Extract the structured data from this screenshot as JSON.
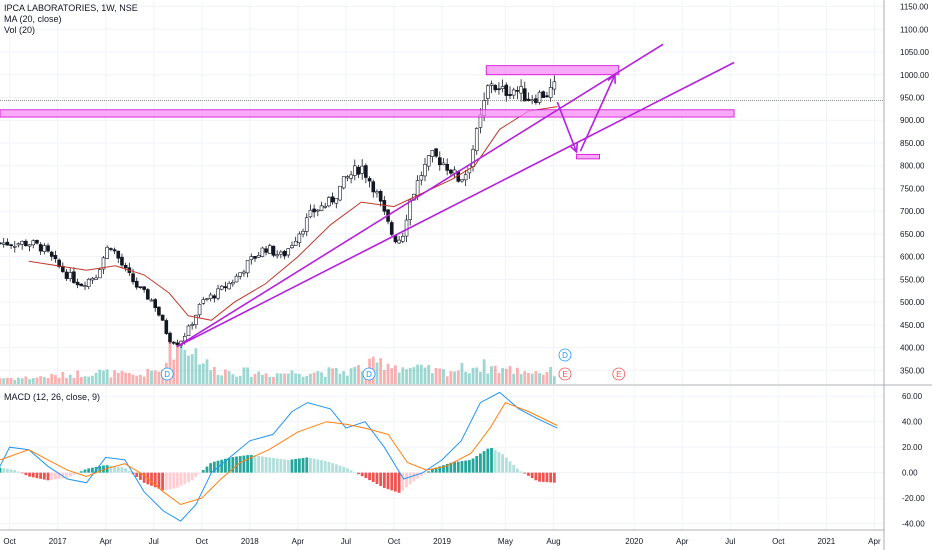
{
  "header": {
    "symbol_line": "IPCA LABORATORIES, 1W, NSE",
    "ma_line": "MA (20, close)",
    "vol_line": "Vol (20)",
    "macd_line": "MACD (12, 26, close, 9)"
  },
  "colors": {
    "up": "#26a69a",
    "down": "#ef5350",
    "ma": "#c0392b",
    "annotation": "#b620e0",
    "zone_fill": "#f58ef5",
    "zone_stroke": "#d400d4",
    "macd_line": "#2196f3",
    "signal_line": "#ff7f0e"
  },
  "chart_data": [
    {
      "type": "candlestick",
      "title": "IPCA LABORATORIES, 1W, NSE",
      "x_ticks": [
        "Oct",
        "2017",
        "Apr",
        "Jul",
        "Oct",
        "2018",
        "Apr",
        "Jul",
        "Oct",
        "2019",
        "May",
        "Aug",
        "2020",
        "Apr",
        "Jul",
        "Oct",
        "2021",
        "Apr"
      ],
      "y_ticks": [
        "350.00",
        "400.00",
        "450.00",
        "500.00",
        "550.00",
        "600.00",
        "650.00",
        "700.00",
        "750.00",
        "800.00",
        "850.00",
        "900.00",
        "950.00",
        "1000.00",
        "1050.00",
        "1100.00",
        "1150.00"
      ],
      "ylim": [
        320,
        1160
      ],
      "price_path": [
        [
          2016.85,
          630
        ],
        [
          2016.92,
          620
        ],
        [
          2017.0,
          580
        ],
        [
          2017.05,
          560
        ],
        [
          2017.12,
          540
        ],
        [
          2017.2,
          560
        ],
        [
          2017.27,
          630
        ],
        [
          2017.35,
          570
        ],
        [
          2017.42,
          530
        ],
        [
          2017.5,
          500
        ],
        [
          2017.54,
          460
        ],
        [
          2017.58,
          420
        ],
        [
          2017.63,
          410
        ],
        [
          2017.68,
          440
        ],
        [
          2017.75,
          500
        ],
        [
          2017.83,
          520
        ],
        [
          2017.92,
          550
        ],
        [
          2018.0,
          590
        ],
        [
          2018.08,
          620
        ],
        [
          2018.17,
          600
        ],
        [
          2018.25,
          650
        ],
        [
          2018.33,
          700
        ],
        [
          2018.42,
          720
        ],
        [
          2018.5,
          770
        ],
        [
          2018.58,
          800
        ],
        [
          2018.65,
          750
        ],
        [
          2018.71,
          680
        ],
        [
          2018.75,
          640
        ],
        [
          2018.79,
          640
        ],
        [
          2018.83,
          720
        ],
        [
          2018.9,
          790
        ],
        [
          2018.95,
          820
        ],
        [
          2019.0,
          810
        ],
        [
          2019.05,
          790
        ],
        [
          2019.08,
          770
        ],
        [
          2019.12,
          780
        ],
        [
          2019.17,
          850
        ],
        [
          2019.21,
          920
        ],
        [
          2019.25,
          990
        ],
        [
          2019.3,
          960
        ],
        [
          2019.37,
          970
        ],
        [
          2019.45,
          950
        ],
        [
          2019.55,
          960
        ],
        [
          2019.6,
          975
        ]
      ],
      "moving_average": [
        [
          2016.85,
          590
        ],
        [
          2017.0,
          580
        ],
        [
          2017.15,
          570
        ],
        [
          2017.3,
          580
        ],
        [
          2017.45,
          560
        ],
        [
          2017.58,
          520
        ],
        [
          2017.68,
          470
        ],
        [
          2017.8,
          460
        ],
        [
          2017.92,
          500
        ],
        [
          2018.08,
          540
        ],
        [
          2018.25,
          600
        ],
        [
          2018.42,
          670
        ],
        [
          2018.58,
          720
        ],
        [
          2018.75,
          710
        ],
        [
          2018.9,
          740
        ],
        [
          2019.05,
          770
        ],
        [
          2019.17,
          800
        ],
        [
          2019.3,
          880
        ],
        [
          2019.45,
          920
        ],
        [
          2019.6,
          930
        ]
      ],
      "last_price": 943,
      "annotations": {
        "resistance_zone": [
          2019.23,
          2019.92,
          1000,
          1020
        ],
        "support_zone": [
          2016.7,
          2020.52,
          907,
          923
        ],
        "target_zone": [
          2019.7,
          2019.82,
          815,
          825
        ],
        "trendline_1": [
          [
            2017.62,
            402
          ],
          [
            2020.15,
            1067
          ]
        ],
        "trendline_2": [
          [
            2017.62,
            402
          ],
          [
            2020.52,
            1027
          ]
        ],
        "arrow_down": [
          [
            2019.6,
            940
          ],
          [
            2019.7,
            830
          ]
        ],
        "arrow_up": [
          [
            2019.72,
            832
          ],
          [
            2019.9,
            1000
          ]
        ]
      },
      "event_markers": [
        {
          "label": "D",
          "x": 2017.57
        },
        {
          "label": "D",
          "x": 2018.62
        },
        {
          "label": "D",
          "x": 2019.64
        },
        {
          "label": "E",
          "x": 2019.64
        },
        {
          "label": "E",
          "x": 2019.92
        }
      ]
    },
    {
      "type": "bar",
      "name": "Vol (20)",
      "volume_profile": [
        [
          2016.85,
          0.15
        ],
        [
          2017.0,
          0.2
        ],
        [
          2017.2,
          0.3
        ],
        [
          2017.4,
          0.2
        ],
        [
          2017.55,
          0.35
        ],
        [
          2017.57,
          1.0
        ],
        [
          2017.7,
          0.9
        ],
        [
          2017.8,
          0.35
        ],
        [
          2017.95,
          0.3
        ],
        [
          2018.1,
          0.25
        ],
        [
          2018.3,
          0.3
        ],
        [
          2018.5,
          0.3
        ],
        [
          2018.7,
          0.55
        ],
        [
          2018.8,
          0.4
        ],
        [
          2019.0,
          0.3
        ],
        [
          2019.2,
          0.45
        ],
        [
          2019.35,
          0.35
        ],
        [
          2019.5,
          0.3
        ],
        [
          2019.6,
          0.3
        ]
      ]
    },
    {
      "type": "line",
      "title": "MACD (12, 26, close, 9)",
      "y_ticks": [
        "-40.00",
        "-20.00",
        "0.00",
        "20.00",
        "40.00",
        "60.00"
      ],
      "ylim": [
        -45,
        68
      ],
      "macd": [
        [
          2016.7,
          5
        ],
        [
          2016.75,
          20
        ],
        [
          2016.85,
          18
        ],
        [
          2016.95,
          5
        ],
        [
          2017.05,
          -5
        ],
        [
          2017.15,
          -8
        ],
        [
          2017.25,
          12
        ],
        [
          2017.35,
          10
        ],
        [
          2017.45,
          -15
        ],
        [
          2017.55,
          -30
        ],
        [
          2017.64,
          -38
        ],
        [
          2017.72,
          -25
        ],
        [
          2017.8,
          0
        ],
        [
          2017.92,
          15
        ],
        [
          2018.0,
          25
        ],
        [
          2018.12,
          30
        ],
        [
          2018.22,
          48
        ],
        [
          2018.3,
          55
        ],
        [
          2018.42,
          50
        ],
        [
          2018.5,
          35
        ],
        [
          2018.6,
          40
        ],
        [
          2018.7,
          20
        ],
        [
          2018.8,
          -5
        ],
        [
          2018.9,
          0
        ],
        [
          2019.0,
          10
        ],
        [
          2019.1,
          25
        ],
        [
          2019.2,
          55
        ],
        [
          2019.3,
          63
        ],
        [
          2019.4,
          50
        ],
        [
          2019.5,
          42
        ],
        [
          2019.6,
          35
        ]
      ],
      "signal": [
        [
          2016.7,
          10
        ],
        [
          2016.85,
          18
        ],
        [
          2016.95,
          10
        ],
        [
          2017.05,
          2
        ],
        [
          2017.15,
          -3
        ],
        [
          2017.25,
          3
        ],
        [
          2017.35,
          7
        ],
        [
          2017.45,
          -2
        ],
        [
          2017.55,
          -15
        ],
        [
          2017.64,
          -25
        ],
        [
          2017.75,
          -20
        ],
        [
          2017.85,
          -5
        ],
        [
          2017.95,
          8
        ],
        [
          2018.1,
          18
        ],
        [
          2018.25,
          32
        ],
        [
          2018.4,
          40
        ],
        [
          2018.5,
          38
        ],
        [
          2018.6,
          35
        ],
        [
          2018.72,
          30
        ],
        [
          2018.82,
          8
        ],
        [
          2018.92,
          2
        ],
        [
          2019.02,
          5
        ],
        [
          2019.15,
          15
        ],
        [
          2019.25,
          35
        ],
        [
          2019.33,
          55
        ],
        [
          2019.45,
          48
        ],
        [
          2019.6,
          37
        ]
      ],
      "histogram": [
        [
          2016.7,
          4
        ],
        [
          2016.78,
          2
        ],
        [
          2016.85,
          -3
        ],
        [
          2016.95,
          -6
        ],
        [
          2017.05,
          -4
        ],
        [
          2017.15,
          3
        ],
        [
          2017.25,
          6
        ],
        [
          2017.35,
          4
        ],
        [
          2017.45,
          -8
        ],
        [
          2017.55,
          -14
        ],
        [
          2017.62,
          -12
        ],
        [
          2017.7,
          -6
        ],
        [
          2017.8,
          8
        ],
        [
          2017.9,
          12
        ],
        [
          2018.0,
          14
        ],
        [
          2018.1,
          12
        ],
        [
          2018.2,
          10
        ],
        [
          2018.3,
          12
        ],
        [
          2018.4,
          9
        ],
        [
          2018.5,
          4
        ],
        [
          2018.6,
          -4
        ],
        [
          2018.7,
          -12
        ],
        [
          2018.78,
          -16
        ],
        [
          2018.86,
          -6
        ],
        [
          2018.95,
          3
        ],
        [
          2019.05,
          8
        ],
        [
          2019.15,
          10
        ],
        [
          2019.25,
          20
        ],
        [
          2019.32,
          14
        ],
        [
          2019.4,
          2
        ],
        [
          2019.5,
          -7
        ],
        [
          2019.6,
          -8
        ]
      ]
    }
  ]
}
